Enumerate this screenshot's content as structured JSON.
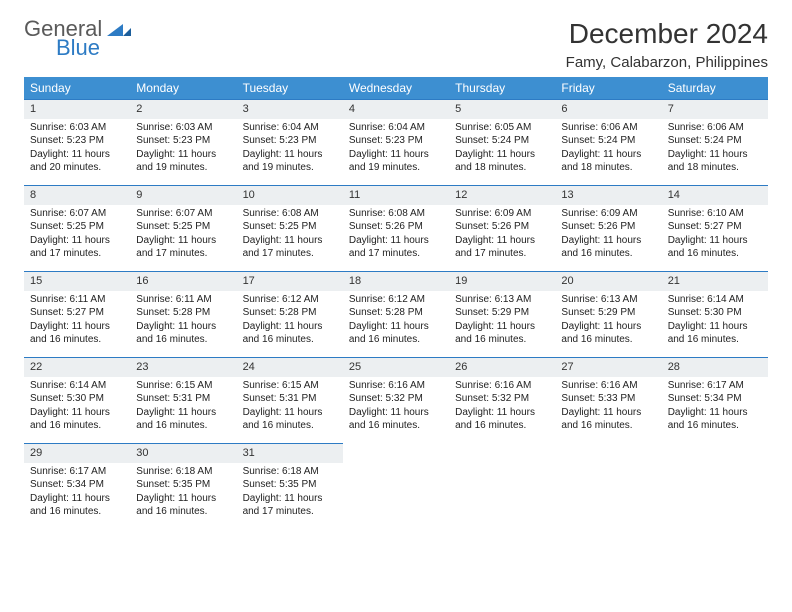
{
  "brand": {
    "line1": "General",
    "line2": "Blue"
  },
  "title": "December 2024",
  "location": "Famy, Calabarzon, Philippines",
  "colors": {
    "header_bg": "#3d8fd1",
    "header_text": "#ffffff",
    "daynum_bg": "#eceff1",
    "daynum_border": "#2d7bc4",
    "text": "#222222",
    "logo_gray": "#5a5a5a",
    "logo_blue": "#2d7bc4",
    "background": "#ffffff"
  },
  "typography": {
    "title_fontsize": 28,
    "loc_fontsize": 15,
    "th_fontsize": 12,
    "cell_fontsize": 10
  },
  "weekdays": [
    "Sunday",
    "Monday",
    "Tuesday",
    "Wednesday",
    "Thursday",
    "Friday",
    "Saturday"
  ],
  "weeks": [
    [
      {
        "n": "1",
        "sunrise": "Sunrise: 6:03 AM",
        "sunset": "Sunset: 5:23 PM",
        "day": "Daylight: 11 hours and 20 minutes."
      },
      {
        "n": "2",
        "sunrise": "Sunrise: 6:03 AM",
        "sunset": "Sunset: 5:23 PM",
        "day": "Daylight: 11 hours and 19 minutes."
      },
      {
        "n": "3",
        "sunrise": "Sunrise: 6:04 AM",
        "sunset": "Sunset: 5:23 PM",
        "day": "Daylight: 11 hours and 19 minutes."
      },
      {
        "n": "4",
        "sunrise": "Sunrise: 6:04 AM",
        "sunset": "Sunset: 5:23 PM",
        "day": "Daylight: 11 hours and 19 minutes."
      },
      {
        "n": "5",
        "sunrise": "Sunrise: 6:05 AM",
        "sunset": "Sunset: 5:24 PM",
        "day": "Daylight: 11 hours and 18 minutes."
      },
      {
        "n": "6",
        "sunrise": "Sunrise: 6:06 AM",
        "sunset": "Sunset: 5:24 PM",
        "day": "Daylight: 11 hours and 18 minutes."
      },
      {
        "n": "7",
        "sunrise": "Sunrise: 6:06 AM",
        "sunset": "Sunset: 5:24 PM",
        "day": "Daylight: 11 hours and 18 minutes."
      }
    ],
    [
      {
        "n": "8",
        "sunrise": "Sunrise: 6:07 AM",
        "sunset": "Sunset: 5:25 PM",
        "day": "Daylight: 11 hours and 17 minutes."
      },
      {
        "n": "9",
        "sunrise": "Sunrise: 6:07 AM",
        "sunset": "Sunset: 5:25 PM",
        "day": "Daylight: 11 hours and 17 minutes."
      },
      {
        "n": "10",
        "sunrise": "Sunrise: 6:08 AM",
        "sunset": "Sunset: 5:25 PM",
        "day": "Daylight: 11 hours and 17 minutes."
      },
      {
        "n": "11",
        "sunrise": "Sunrise: 6:08 AM",
        "sunset": "Sunset: 5:26 PM",
        "day": "Daylight: 11 hours and 17 minutes."
      },
      {
        "n": "12",
        "sunrise": "Sunrise: 6:09 AM",
        "sunset": "Sunset: 5:26 PM",
        "day": "Daylight: 11 hours and 17 minutes."
      },
      {
        "n": "13",
        "sunrise": "Sunrise: 6:09 AM",
        "sunset": "Sunset: 5:26 PM",
        "day": "Daylight: 11 hours and 16 minutes."
      },
      {
        "n": "14",
        "sunrise": "Sunrise: 6:10 AM",
        "sunset": "Sunset: 5:27 PM",
        "day": "Daylight: 11 hours and 16 minutes."
      }
    ],
    [
      {
        "n": "15",
        "sunrise": "Sunrise: 6:11 AM",
        "sunset": "Sunset: 5:27 PM",
        "day": "Daylight: 11 hours and 16 minutes."
      },
      {
        "n": "16",
        "sunrise": "Sunrise: 6:11 AM",
        "sunset": "Sunset: 5:28 PM",
        "day": "Daylight: 11 hours and 16 minutes."
      },
      {
        "n": "17",
        "sunrise": "Sunrise: 6:12 AM",
        "sunset": "Sunset: 5:28 PM",
        "day": "Daylight: 11 hours and 16 minutes."
      },
      {
        "n": "18",
        "sunrise": "Sunrise: 6:12 AM",
        "sunset": "Sunset: 5:28 PM",
        "day": "Daylight: 11 hours and 16 minutes."
      },
      {
        "n": "19",
        "sunrise": "Sunrise: 6:13 AM",
        "sunset": "Sunset: 5:29 PM",
        "day": "Daylight: 11 hours and 16 minutes."
      },
      {
        "n": "20",
        "sunrise": "Sunrise: 6:13 AM",
        "sunset": "Sunset: 5:29 PM",
        "day": "Daylight: 11 hours and 16 minutes."
      },
      {
        "n": "21",
        "sunrise": "Sunrise: 6:14 AM",
        "sunset": "Sunset: 5:30 PM",
        "day": "Daylight: 11 hours and 16 minutes."
      }
    ],
    [
      {
        "n": "22",
        "sunrise": "Sunrise: 6:14 AM",
        "sunset": "Sunset: 5:30 PM",
        "day": "Daylight: 11 hours and 16 minutes."
      },
      {
        "n": "23",
        "sunrise": "Sunrise: 6:15 AM",
        "sunset": "Sunset: 5:31 PM",
        "day": "Daylight: 11 hours and 16 minutes."
      },
      {
        "n": "24",
        "sunrise": "Sunrise: 6:15 AM",
        "sunset": "Sunset: 5:31 PM",
        "day": "Daylight: 11 hours and 16 minutes."
      },
      {
        "n": "25",
        "sunrise": "Sunrise: 6:16 AM",
        "sunset": "Sunset: 5:32 PM",
        "day": "Daylight: 11 hours and 16 minutes."
      },
      {
        "n": "26",
        "sunrise": "Sunrise: 6:16 AM",
        "sunset": "Sunset: 5:32 PM",
        "day": "Daylight: 11 hours and 16 minutes."
      },
      {
        "n": "27",
        "sunrise": "Sunrise: 6:16 AM",
        "sunset": "Sunset: 5:33 PM",
        "day": "Daylight: 11 hours and 16 minutes."
      },
      {
        "n": "28",
        "sunrise": "Sunrise: 6:17 AM",
        "sunset": "Sunset: 5:34 PM",
        "day": "Daylight: 11 hours and 16 minutes."
      }
    ],
    [
      {
        "n": "29",
        "sunrise": "Sunrise: 6:17 AM",
        "sunset": "Sunset: 5:34 PM",
        "day": "Daylight: 11 hours and 16 minutes."
      },
      {
        "n": "30",
        "sunrise": "Sunrise: 6:18 AM",
        "sunset": "Sunset: 5:35 PM",
        "day": "Daylight: 11 hours and 16 minutes."
      },
      {
        "n": "31",
        "sunrise": "Sunrise: 6:18 AM",
        "sunset": "Sunset: 5:35 PM",
        "day": "Daylight: 11 hours and 17 minutes."
      },
      null,
      null,
      null,
      null
    ]
  ]
}
